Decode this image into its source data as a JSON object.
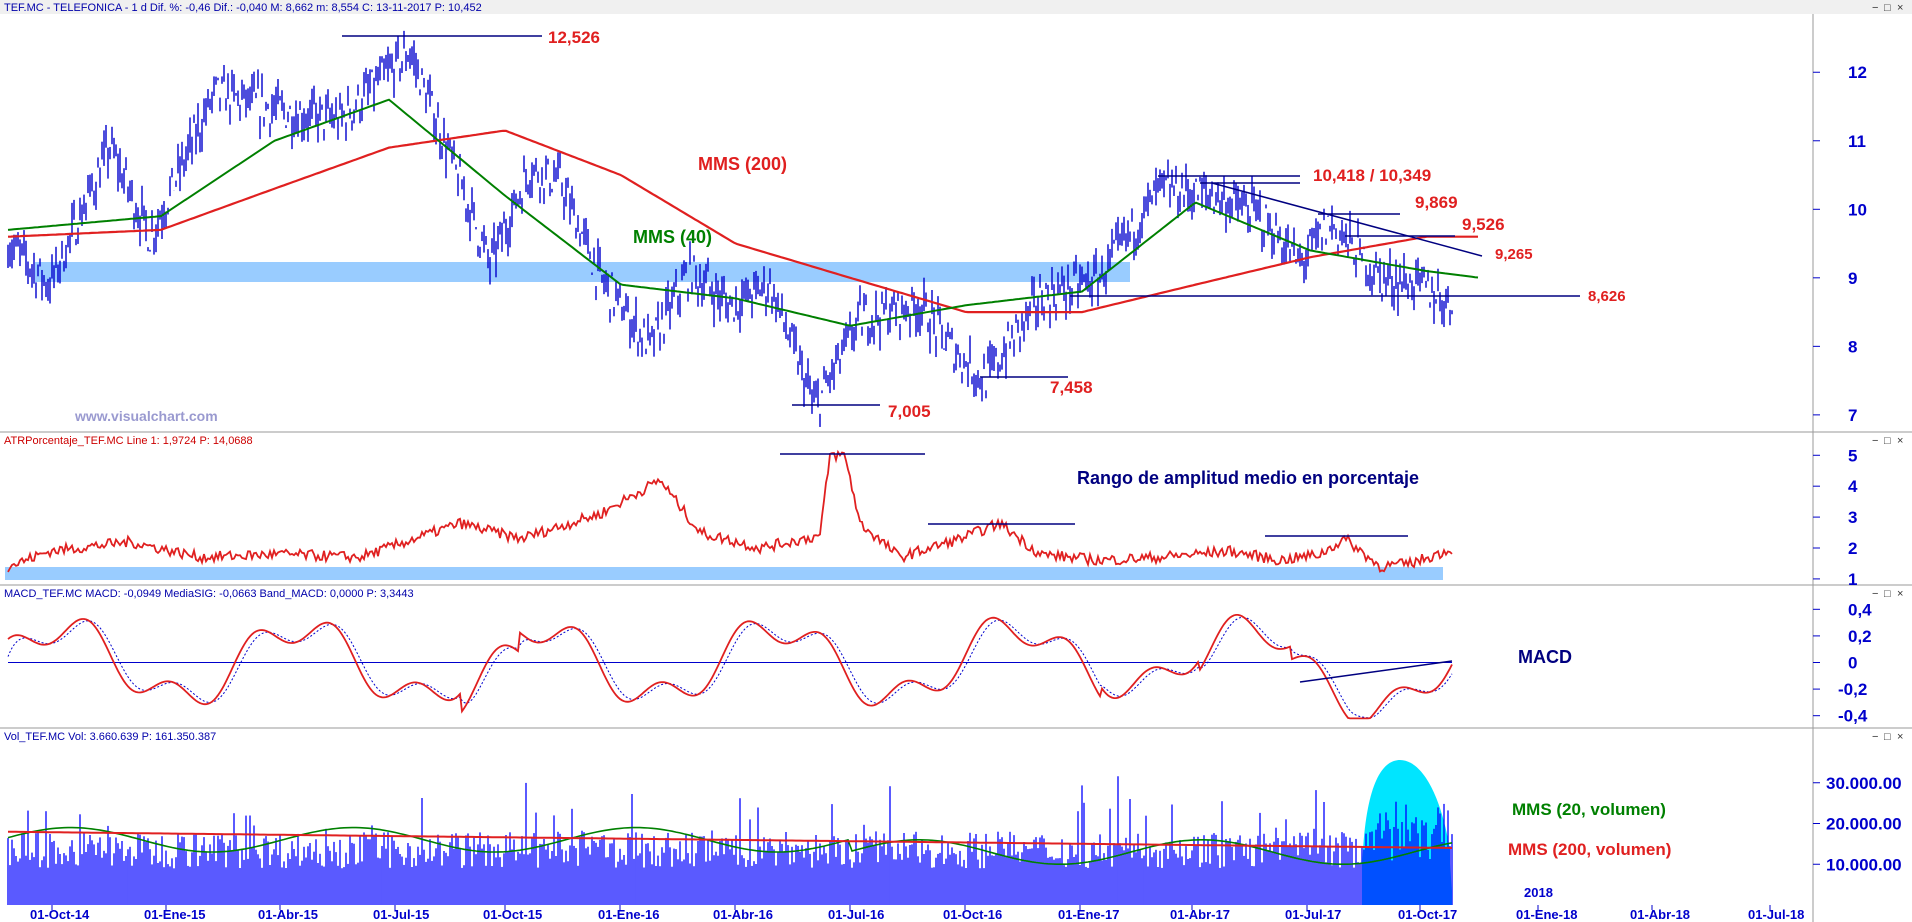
{
  "headers": {
    "price": "TEF.MC - TELEFONICA - 1 d  Dif. %: -0,46  Dif.: -0,040  M: 8,662  m: 8,554  C: 13-11-2017  P: 10,452",
    "atr": "ATRPorcentaje_TEF.MC  Line 1: 1,9724  P: 14,0688",
    "macd": "MACD_TEF.MC  MACD: -0,0949  MediaSIG: -0,0663  Band_MACD: 0,0000  P: 3,3443",
    "vol": "Vol_TEF.MC  Vol: 3.660.639  P: 161.350.387"
  },
  "watermark": "www.visualchart.com",
  "window_controls": [
    "−",
    "□",
    "×"
  ],
  "colors": {
    "price": "#0000cc",
    "mms200": "#e02020",
    "mms40": "#008000",
    "band": "#99ccff",
    "annot_red": "#e02020",
    "annot_blue": "#000080",
    "cyan": "#00e5ff"
  },
  "chart_data": [
    {
      "type": "line",
      "panel": "price",
      "title": "",
      "y_ticks": [
        "12",
        "11",
        "10",
        "9",
        "8",
        "7"
      ],
      "ylim": [
        6.75,
        12.85
      ],
      "series": [
        {
          "name": "MMS (200)",
          "x": [
            "2014-10-01",
            "2015-01-01",
            "2015-04-01",
            "2015-07-01",
            "2015-10-01",
            "2016-01-01",
            "2016-04-01",
            "2016-07-01",
            "2016-10-01",
            "2017-01-01",
            "2017-04-01",
            "2017-07-01",
            "2017-10-01",
            "2017-11-13"
          ],
          "values": [
            9.6,
            9.7,
            10.3,
            10.9,
            11.15,
            10.5,
            9.5,
            9.0,
            8.5,
            8.5,
            8.9,
            9.3,
            9.6,
            9.6
          ]
        },
        {
          "name": "MMS (40)",
          "x": [
            "2014-10-01",
            "2015-01-01",
            "2015-04-01",
            "2015-07-01",
            "2015-10-01",
            "2016-01-01",
            "2016-04-01",
            "2016-07-01",
            "2016-10-01",
            "2017-01-01",
            "2017-04-01",
            "2017-07-01",
            "2017-10-01",
            "2017-11-13"
          ],
          "values": [
            9.7,
            9.9,
            11.0,
            11.6,
            10.2,
            8.9,
            8.7,
            8.3,
            8.6,
            8.8,
            10.1,
            9.4,
            9.1,
            9.0
          ]
        }
      ],
      "annotations": [
        "12,526",
        "7,005",
        "7,458",
        "10,418 / 10,349",
        "9,869",
        "9,526",
        "9,265",
        "8,626",
        "MMS (200)",
        "MMS (40)"
      ]
    },
    {
      "type": "line",
      "panel": "atr",
      "title": "Rango de amplitud medio en porcentaje",
      "y_ticks": [
        "5",
        "4",
        "3",
        "2",
        "1"
      ],
      "ylim": [
        0.9,
        5.3
      ],
      "series": [
        {
          "name": "ATRPorcentaje_TEF.MC",
          "x": [
            "2014-10-01",
            "2015-01-01",
            "2015-04-01",
            "2015-07-01",
            "2015-10-01",
            "2016-01-01",
            "2016-04-01",
            "2016-07-01",
            "2016-10-01",
            "2017-01-01",
            "2017-04-01",
            "2017-07-01",
            "2017-10-01",
            "2017-11-13"
          ],
          "values": [
            1.4,
            2.2,
            1.7,
            1.8,
            2.4,
            2.9,
            2.0,
            5.0,
            2.4,
            1.5,
            1.7,
            1.9,
            1.4,
            1.97
          ]
        }
      ]
    },
    {
      "type": "line",
      "panel": "macd",
      "title": "MACD",
      "y_ticks": [
        "0,4",
        "0,2",
        "0",
        "-0,2",
        "-0,4"
      ],
      "ylim": [
        -0.47,
        0.47
      ],
      "series": [
        {
          "name": "MACD",
          "x": [
            "2014-10-01",
            "2015-01-01",
            "2015-04-01",
            "2015-07-01",
            "2015-10-01",
            "2016-01-01",
            "2016-04-01",
            "2016-07-01",
            "2016-10-01",
            "2017-01-01",
            "2017-04-01",
            "2017-07-01",
            "2017-10-01",
            "2017-11-13"
          ],
          "values": [
            0.0,
            0.3,
            0.2,
            0.1,
            -0.4,
            -0.2,
            -0.1,
            -0.2,
            0.1,
            0.2,
            0.3,
            -0.2,
            0.0,
            -0.09
          ]
        },
        {
          "name": "MediaSIG",
          "x": [
            "2014-10-01",
            "2015-01-01",
            "2015-04-01",
            "2015-07-01",
            "2015-10-01",
            "2016-01-01",
            "2016-04-01",
            "2016-07-01",
            "2016-10-01",
            "2017-01-01",
            "2017-04-01",
            "2017-07-01",
            "2017-10-01",
            "2017-11-13"
          ],
          "values": [
            0.0,
            0.28,
            0.22,
            0.12,
            -0.35,
            -0.22,
            -0.08,
            -0.18,
            0.08,
            0.18,
            0.28,
            -0.15,
            0.0,
            -0.07
          ]
        }
      ]
    },
    {
      "type": "bar",
      "panel": "volume",
      "title": "",
      "y_ticks": [
        "30.000.00",
        "20.000.00",
        "10.000.00"
      ],
      "ylim": [
        0,
        40000000
      ],
      "series_labels": [
        "MMS (20, volumen)",
        "MMS (200, volumen)"
      ],
      "x_ticks": [
        "01-Oct-14",
        "01-Ene-15",
        "01-Abr-15",
        "01-Jul-15",
        "01-Oct-15",
        "01-Ene-16",
        "01-Abr-16",
        "01-Jul-16",
        "01-Oct-16",
        "01-Ene-17",
        "01-Abr-17",
        "01-Jul-17",
        "01-Oct-17",
        "01-Ene-18",
        "01-Abr-18",
        "01-Jul-18"
      ],
      "year_label": "2018",
      "mms200_volume": 15000000
    }
  ]
}
